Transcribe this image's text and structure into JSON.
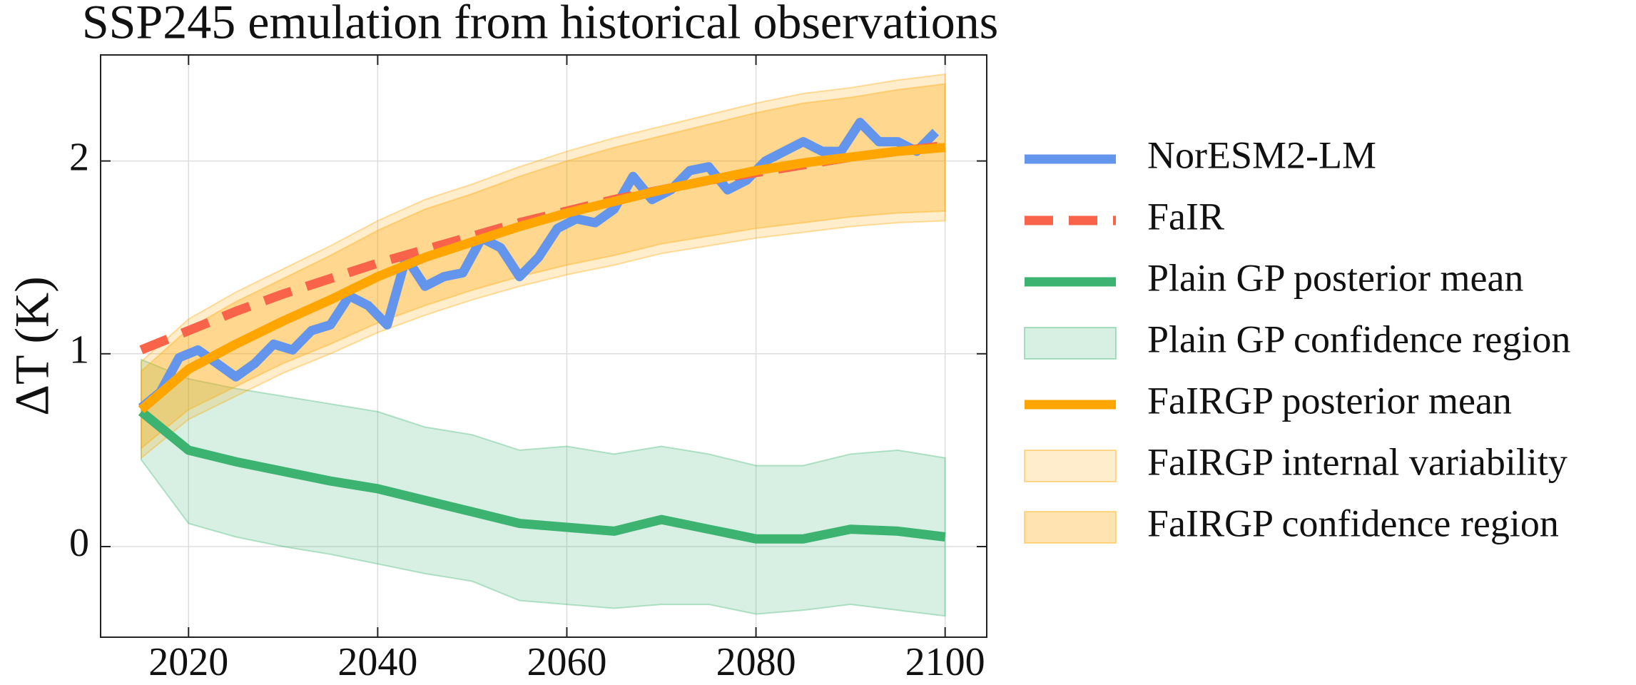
{
  "chart_data": {
    "type": "line",
    "title": "SSP245 emulation from historical observations",
    "y_label": "ΔT (K)",
    "x": [
      2015,
      2020,
      2025,
      2030,
      2035,
      2040,
      2045,
      2050,
      2055,
      2060,
      2065,
      2070,
      2075,
      2080,
      2085,
      2090,
      2095,
      2100
    ],
    "xlim": [
      2010.7,
      2104.4
    ],
    "xticks": [
      2020,
      2040,
      2060,
      2080,
      2100
    ],
    "ylim": [
      -0.47,
      2.55
    ],
    "yticks": [
      0,
      1,
      2
    ],
    "grid": true,
    "legend": "outside right",
    "series": [
      {
        "name": "NorESM2-LM",
        "color": "#6495ed",
        "style": "solid",
        "x": [
          2015,
          2017,
          2019,
          2021,
          2023,
          2025,
          2027,
          2029,
          2031,
          2033,
          2035,
          2037,
          2039,
          2041,
          2043,
          2045,
          2047,
          2049,
          2051,
          2053,
          2055,
          2057,
          2059,
          2061,
          2063,
          2065,
          2067,
          2069,
          2071,
          2073,
          2075,
          2077,
          2079,
          2081,
          2083,
          2085,
          2087,
          2089,
          2091,
          2093,
          2095,
          2097,
          2099
        ],
        "values": [
          0.72,
          0.8,
          0.98,
          1.02,
          0.95,
          0.88,
          0.95,
          1.05,
          1.02,
          1.12,
          1.15,
          1.3,
          1.25,
          1.15,
          1.5,
          1.35,
          1.4,
          1.42,
          1.6,
          1.55,
          1.4,
          1.5,
          1.65,
          1.7,
          1.68,
          1.75,
          1.92,
          1.8,
          1.85,
          1.95,
          1.97,
          1.85,
          1.9,
          2.0,
          2.05,
          2.1,
          2.05,
          2.05,
          2.2,
          2.1,
          2.1,
          2.05,
          2.15
        ]
      },
      {
        "name": "FaIR",
        "color": "#f8634a",
        "style": "dashed",
        "values": [
          1.02,
          1.12,
          1.22,
          1.31,
          1.39,
          1.47,
          1.54,
          1.61,
          1.68,
          1.74,
          1.8,
          1.85,
          1.9,
          1.94,
          1.98,
          2.02,
          2.05,
          2.08
        ]
      },
      {
        "name": "Plain GP posterior mean",
        "color": "#3cb371",
        "style": "solid",
        "values": [
          0.7,
          0.5,
          0.44,
          0.39,
          0.34,
          0.3,
          0.24,
          0.18,
          0.12,
          0.1,
          0.08,
          0.14,
          0.09,
          0.04,
          0.04,
          0.09,
          0.08,
          0.05
        ]
      },
      {
        "name": "Plain GP confidence region",
        "color": "#3cb371",
        "style": "band",
        "lower": [
          0.45,
          0.12,
          0.05,
          0.0,
          -0.04,
          -0.09,
          -0.14,
          -0.18,
          -0.28,
          -0.3,
          -0.32,
          -0.3,
          -0.3,
          -0.35,
          -0.33,
          -0.3,
          -0.33,
          -0.36
        ],
        "upper": [
          0.97,
          0.87,
          0.82,
          0.78,
          0.74,
          0.7,
          0.62,
          0.58,
          0.5,
          0.52,
          0.48,
          0.52,
          0.48,
          0.42,
          0.42,
          0.48,
          0.5,
          0.46
        ]
      },
      {
        "name": "FaIRGP posterior mean",
        "color": "#ffa500",
        "style": "solid",
        "values": [
          0.71,
          0.92,
          1.05,
          1.17,
          1.28,
          1.4,
          1.5,
          1.58,
          1.66,
          1.73,
          1.79,
          1.85,
          1.9,
          1.95,
          1.99,
          2.02,
          2.05,
          2.07
        ]
      },
      {
        "name": "FaIRGP internal variability",
        "color": "#ffa500",
        "style": "band",
        "opacity": 0.2,
        "lower": [
          0.46,
          0.66,
          0.78,
          0.9,
          1.0,
          1.11,
          1.2,
          1.28,
          1.35,
          1.41,
          1.46,
          1.52,
          1.56,
          1.6,
          1.63,
          1.66,
          1.68,
          1.69
        ],
        "upper": [
          0.96,
          1.18,
          1.32,
          1.44,
          1.56,
          1.69,
          1.8,
          1.88,
          1.97,
          2.05,
          2.12,
          2.18,
          2.24,
          2.3,
          2.35,
          2.38,
          2.42,
          2.45
        ]
      },
      {
        "name": "FaIRGP confidence region",
        "color": "#ffa500",
        "style": "band",
        "opacity": 0.3,
        "lower": [
          0.51,
          0.71,
          0.83,
          0.95,
          1.05,
          1.16,
          1.25,
          1.33,
          1.4,
          1.46,
          1.51,
          1.57,
          1.61,
          1.65,
          1.68,
          1.71,
          1.73,
          1.74
        ],
        "upper": [
          0.91,
          1.13,
          1.27,
          1.39,
          1.51,
          1.64,
          1.75,
          1.83,
          1.92,
          2.0,
          2.07,
          2.13,
          2.19,
          2.25,
          2.3,
          2.33,
          2.37,
          2.4
        ]
      }
    ]
  }
}
